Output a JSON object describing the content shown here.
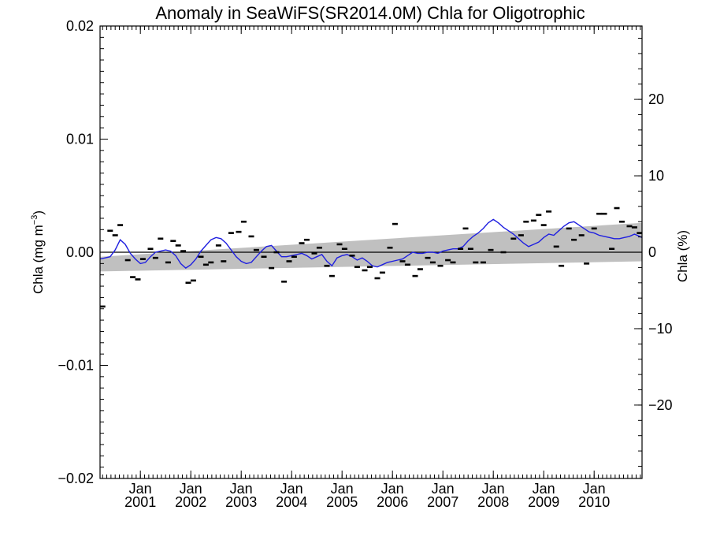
{
  "chart_data": {
    "type": "line",
    "title": "Anomaly in SeaWiFS(SR2014.0M) Chla for Oligotrophic",
    "ylabel": "Chla (mg m",
    "ylabel_superscript": "−3",
    "ylabel_close": ")",
    "y2label": "Chla (%)",
    "xlabel": "",
    "xlim": [
      2000.2,
      2010.95
    ],
    "ylim": [
      -0.02,
      0.02
    ],
    "y2lim": [
      -29.6,
      29.6
    ],
    "yticks": [
      {
        "value": -0.02,
        "label": "−0.02"
      },
      {
        "value": -0.01,
        "label": "−0.01"
      },
      {
        "value": 0.0,
        "label": "0.00"
      },
      {
        "value": 0.01,
        "label": "0.01"
      },
      {
        "value": 0.02,
        "label": "0.02"
      }
    ],
    "y2ticks": [
      {
        "value": -20,
        "label": "−20"
      },
      {
        "value": -10,
        "label": "−10"
      },
      {
        "value": 0,
        "label": "0"
      },
      {
        "value": 10,
        "label": "10"
      },
      {
        "value": 20,
        "label": "20"
      }
    ],
    "xticks": [
      {
        "value": 2001.0,
        "month": "Jan",
        "year": "2001"
      },
      {
        "value": 2002.0,
        "month": "Jan",
        "year": "2002"
      },
      {
        "value": 2003.0,
        "month": "Jan",
        "year": "2003"
      },
      {
        "value": 2004.0,
        "month": "Jan",
        "year": "2004"
      },
      {
        "value": 2005.0,
        "month": "Jan",
        "year": "2005"
      },
      {
        "value": 2006.0,
        "month": "Jan",
        "year": "2006"
      },
      {
        "value": 2007.0,
        "month": "Jan",
        "year": "2007"
      },
      {
        "value": 2008.0,
        "month": "Jan",
        "year": "2008"
      },
      {
        "value": 2009.0,
        "month": "Jan",
        "year": "2009"
      },
      {
        "value": 2010.0,
        "month": "Jan",
        "year": "2010"
      }
    ],
    "trend_band": {
      "x": [
        2000.2,
        2010.95
      ],
      "lower": [
        -0.0017,
        -0.0008
      ],
      "upper": [
        -0.0004,
        0.0026
      ]
    },
    "zero_line": 0.0,
    "series": [
      {
        "color": "#1f1fe0",
        "style": "line",
        "x": [
          2000.2,
          2000.3,
          2000.4,
          2000.5,
          2000.6,
          2000.7,
          2000.8,
          2000.9,
          2001.0,
          2001.1,
          2001.2,
          2001.3,
          2001.4,
          2001.5,
          2001.6,
          2001.7,
          2001.8,
          2001.9,
          2002.0,
          2002.1,
          2002.2,
          2002.3,
          2002.4,
          2002.5,
          2002.6,
          2002.7,
          2002.8,
          2002.9,
          2003.0,
          2003.1,
          2003.2,
          2003.3,
          2003.4,
          2003.5,
          2003.6,
          2003.7,
          2003.8,
          2003.9,
          2004.0,
          2004.1,
          2004.2,
          2004.3,
          2004.4,
          2004.5,
          2004.6,
          2004.7,
          2004.8,
          2004.9,
          2005.0,
          2005.1,
          2005.2,
          2005.3,
          2005.4,
          2005.5,
          2005.6,
          2005.7,
          2005.8,
          2005.9,
          2006.0,
          2006.1,
          2006.2,
          2006.3,
          2006.4,
          2006.5,
          2006.6,
          2006.7,
          2006.8,
          2006.9,
          2007.0,
          2007.1,
          2007.2,
          2007.3,
          2007.4,
          2007.5,
          2007.6,
          2007.7,
          2007.8,
          2007.9,
          2008.0,
          2008.1,
          2008.2,
          2008.3,
          2008.4,
          2008.5,
          2008.6,
          2008.7,
          2008.8,
          2008.9,
          2009.0,
          2009.1,
          2009.2,
          2009.3,
          2009.4,
          2009.5,
          2009.6,
          2009.7,
          2009.8,
          2009.9,
          2010.0,
          2010.1,
          2010.2,
          2010.3,
          2010.4,
          2010.5,
          2010.6,
          2010.7,
          2010.8,
          2010.95
        ],
        "y": [
          -0.0006,
          -0.0005,
          -0.0004,
          0.0002,
          0.0011,
          0.0007,
          -0.0001,
          -0.0006,
          -0.001,
          -0.0009,
          -0.0004,
          0.0,
          0.0001,
          0.0002,
          0.0001,
          -0.0003,
          -0.001,
          -0.0014,
          -0.0011,
          -0.0006,
          0.0001,
          0.0006,
          0.0011,
          0.0013,
          0.0012,
          0.0008,
          0.0002,
          -0.0004,
          -0.0008,
          -0.001,
          -0.0009,
          -0.0004,
          0.0001,
          0.0005,
          0.0006,
          0.0001,
          -0.0004,
          -0.0004,
          -0.0003,
          -0.0002,
          -0.0001,
          -0.0003,
          -0.0006,
          -0.0004,
          -0.0002,
          -0.0008,
          -0.0012,
          -0.0005,
          -0.0003,
          -0.0002,
          -0.0004,
          -0.0007,
          -0.0005,
          -0.0008,
          -0.0012,
          -0.0013,
          -0.0011,
          -0.0009,
          -0.0008,
          -0.0007,
          -0.0006,
          -0.0003,
          0.0,
          -0.0001,
          -0.0001,
          0.0,
          0.0,
          -0.0001,
          0.0001,
          0.0002,
          0.0003,
          0.0003,
          0.0005,
          0.001,
          0.0014,
          0.0017,
          0.0021,
          0.0026,
          0.0029,
          0.0026,
          0.0022,
          0.0019,
          0.0016,
          0.0012,
          0.0008,
          0.0005,
          0.0007,
          0.0009,
          0.0013,
          0.0016,
          0.0015,
          0.0019,
          0.0023,
          0.0026,
          0.0027,
          0.0024,
          0.0021,
          0.0018,
          0.0017,
          0.0015,
          0.0014,
          0.0013,
          0.0012,
          0.0012,
          0.0013,
          0.0014,
          0.0016,
          0.0013
        ]
      },
      {
        "color": "#000000",
        "style": "dash-markers",
        "x": [
          2000.25,
          2000.4,
          2000.5,
          2000.6,
          2000.75,
          2000.85,
          2000.95,
          2001.05,
          2001.2,
          2001.3,
          2001.4,
          2001.55,
          2001.65,
          2001.75,
          2001.85,
          2001.95,
          2002.05,
          2002.2,
          2002.3,
          2002.4,
          2002.55,
          2002.65,
          2002.8,
          2002.95,
          2003.05,
          2003.2,
          2003.3,
          2003.45,
          2003.6,
          2003.7,
          2003.85,
          2003.95,
          2004.05,
          2004.2,
          2004.3,
          2004.45,
          2004.55,
          2004.7,
          2004.8,
          2004.95,
          2005.05,
          2005.2,
          2005.3,
          2005.45,
          2005.55,
          2005.7,
          2005.8,
          2005.95,
          2006.05,
          2006.2,
          2006.3,
          2006.45,
          2006.55,
          2006.7,
          2006.8,
          2006.95,
          2007.1,
          2007.2,
          2007.35,
          2007.45,
          2007.55,
          2007.65,
          2007.8,
          2007.95,
          2008.2,
          2008.4,
          2008.55,
          2008.65,
          2008.8,
          2008.9,
          2009.0,
          2009.1,
          2009.25,
          2009.35,
          2009.5,
          2009.6,
          2009.75,
          2009.85,
          2010.0,
          2010.1,
          2010.2,
          2010.35,
          2010.45,
          2010.55,
          2010.7,
          2010.8,
          2010.9
        ],
        "y": [
          -0.0048,
          0.0019,
          0.0015,
          0.0024,
          -0.0007,
          -0.0022,
          -0.0024,
          -0.0006,
          0.0003,
          -0.0005,
          0.0012,
          -0.0009,
          0.001,
          0.0006,
          0.0001,
          -0.0027,
          -0.0025,
          -0.0004,
          -0.0011,
          -0.0009,
          0.0006,
          -0.0008,
          0.0017,
          0.0018,
          0.0027,
          0.0014,
          0.0002,
          -0.0004,
          -0.0014,
          0.0,
          -0.0026,
          -0.0008,
          -0.0004,
          0.0008,
          0.0011,
          -0.0001,
          0.0004,
          -0.0012,
          -0.0021,
          0.0007,
          0.0003,
          -0.0003,
          -0.0013,
          -0.0016,
          -0.0013,
          -0.0023,
          -0.0018,
          0.0004,
          0.0025,
          -0.0008,
          -0.0011,
          -0.0021,
          -0.0015,
          -0.0005,
          -0.0009,
          -0.0012,
          -0.0007,
          -0.0009,
          0.0003,
          0.0021,
          0.0003,
          -0.0009,
          -0.0009,
          0.0002,
          0.0,
          0.0012,
          0.0015,
          0.0027,
          0.0028,
          0.0033,
          0.0024,
          0.0036,
          0.0005,
          -0.0012,
          0.0021,
          0.0011,
          0.0015,
          -0.001,
          0.0021,
          0.0034,
          0.0034,
          0.0003,
          0.0039,
          0.0027,
          0.0023,
          0.0022,
          0.0017
        ]
      }
    ]
  }
}
